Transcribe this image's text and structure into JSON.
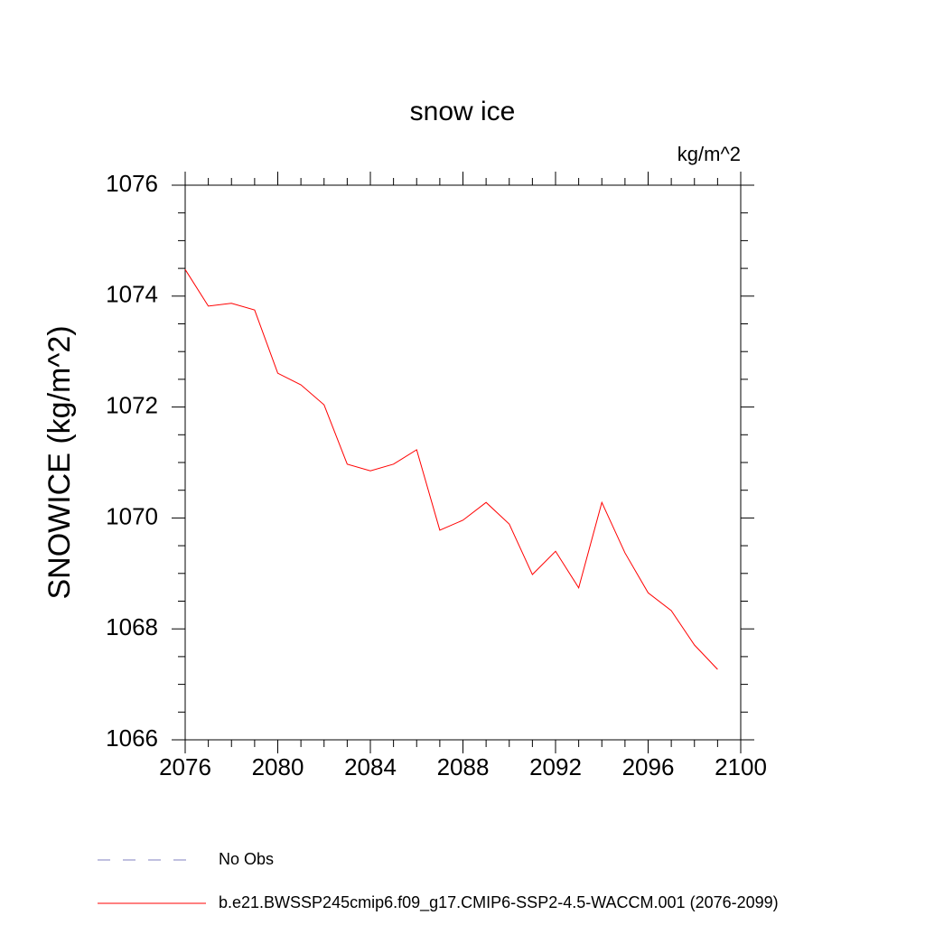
{
  "chart_data": {
    "type": "line",
    "title": "snow ice",
    "units_label": "kg/m^2",
    "y_label": "SNOWICE  (kg/m^2)",
    "x": [
      2076,
      2077,
      2078,
      2079,
      2080,
      2081,
      2082,
      2083,
      2084,
      2085,
      2086,
      2087,
      2088,
      2089,
      2090,
      2091,
      2092,
      2093,
      2094,
      2095,
      2096,
      2097,
      2098,
      2099
    ],
    "series": [
      {
        "name": "No Obs",
        "color": "#8080c0",
        "dashed": true,
        "values": [
          null,
          null,
          null,
          null,
          null,
          null,
          null,
          null,
          null,
          null,
          null,
          null,
          null,
          null,
          null,
          null,
          null,
          null,
          null,
          null,
          null,
          null,
          null,
          null
        ]
      },
      {
        "name": "b.e21.BWSSP245cmip6.f09_g17.CMIP6-SSP2-4.5-WACCM.001 (2076-2099)",
        "color": "#ff0000",
        "dashed": false,
        "values": [
          1074.48,
          1073.82,
          1073.87,
          1073.75,
          1072.61,
          1072.4,
          1072.04,
          1070.97,
          1070.85,
          1070.97,
          1071.23,
          1069.78,
          1069.96,
          1070.28,
          1069.89,
          1068.98,
          1069.4,
          1068.74,
          1070.28,
          1069.37,
          1068.65,
          1068.33,
          1067.71,
          1067.27
        ]
      }
    ],
    "xlim": [
      2076,
      2100
    ],
    "xticks": [
      2076,
      2080,
      2084,
      2088,
      2092,
      2096,
      2100
    ],
    "ylim": [
      1066,
      1076
    ],
    "yticks": [
      1066,
      1068,
      1070,
      1072,
      1074,
      1076
    ],
    "x_minor_per_major": 3,
    "y_minor_per_major": 3,
    "grid": false
  }
}
